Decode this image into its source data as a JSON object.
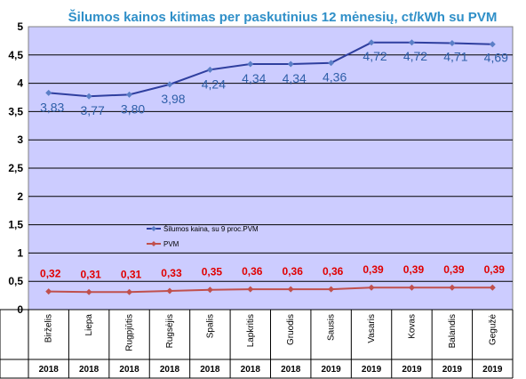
{
  "chart_data": {
    "type": "line",
    "title": "Šilumos kainos kitimas per paskutinius 12 mėnesių, ct/kWh su PVM",
    "categories": [
      "Birželis",
      "Liepa",
      "Rugpjūtis",
      "Rugsėjis",
      "Spalis",
      "Lapkritis",
      "Gruodis",
      "Sausis",
      "Vasaris",
      "Kovas",
      "Balandis",
      "Gegužė"
    ],
    "years": [
      "2018",
      "2018",
      "2018",
      "2018",
      "2018",
      "2018",
      "2018",
      "2019",
      "2019",
      "2019",
      "2019",
      "2019"
    ],
    "ylim": [
      0,
      5
    ],
    "yticks": [
      "0",
      "0,5",
      "1",
      "1,5",
      "2",
      "2,5",
      "3",
      "3,5",
      "4",
      "4,5",
      "5"
    ],
    "grid": true,
    "legend_position": "left, middle of plot",
    "series": [
      {
        "name": "Šilumos kaina, su 9 proc.PVM",
        "color": "#2f3f9f",
        "values": [
          3.83,
          3.77,
          3.8,
          3.98,
          4.24,
          4.34,
          4.34,
          4.36,
          4.72,
          4.72,
          4.71,
          4.69
        ],
        "labels": [
          "3,83",
          "3,77",
          "3,80",
          "3,98",
          "4,24",
          "4,34",
          "4,34",
          "4,36",
          "4,72",
          "4,72",
          "4,71",
          "4,69"
        ]
      },
      {
        "name": "PVM",
        "color": "#c0504d",
        "values": [
          0.32,
          0.31,
          0.31,
          0.33,
          0.35,
          0.36,
          0.36,
          0.36,
          0.39,
          0.39,
          0.39,
          0.39
        ],
        "labels": [
          "0,32",
          "0,31",
          "0,31",
          "0,33",
          "0,35",
          "0,36",
          "0,36",
          "0,36",
          "0,39",
          "0,39",
          "0,39",
          "0,39"
        ]
      }
    ]
  }
}
